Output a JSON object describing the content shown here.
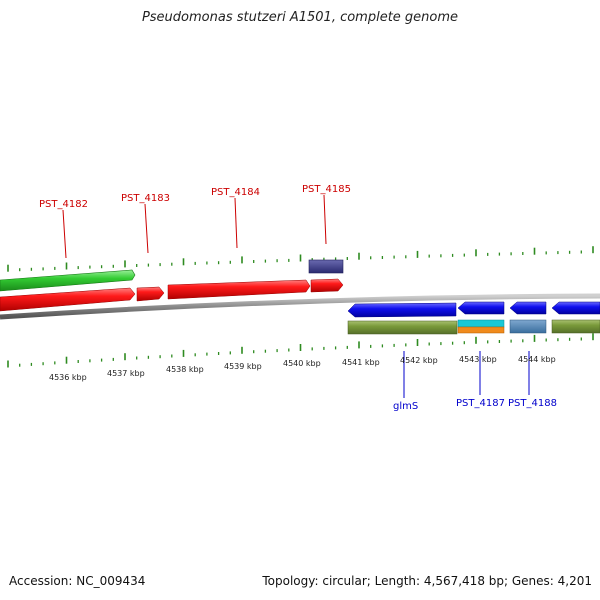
{
  "title": "Pseudomonas stutzeri A1501, complete genome",
  "footer": {
    "accession": "Accession: NC_009434",
    "topology": "Topology: circular; Length: 4,567,418 bp; Genes: 4,201"
  },
  "colors": {
    "forward_cds": "#ff0000",
    "reverse_cds": "#0000ff",
    "rna": "#800080",
    "gc_skew": "#00aa00",
    "backbone": "#808080",
    "tick": "#2e8b20"
  },
  "scale_labels": [
    "4536 kbp",
    "4537 kbp",
    "4538 kbp",
    "4539 kbp",
    "4540 kbp",
    "4541 kbp",
    "4542 kbp",
    "4543 kbp",
    "4544 kbp"
  ],
  "top_genes": [
    {
      "label": "PST_4182",
      "color": "#cc0000"
    },
    {
      "label": "PST_4183",
      "color": "#cc0000"
    },
    {
      "label": "PST_4184",
      "color": "#cc0000"
    },
    {
      "label": "PST_4185",
      "color": "#cc0000"
    }
  ],
  "bottom_genes": [
    {
      "label": "glmS",
      "color": "#0000cc"
    },
    {
      "label": "PST_4187",
      "color": "#0000cc"
    },
    {
      "label": "PST_4188",
      "color": "#0000cc"
    }
  ]
}
